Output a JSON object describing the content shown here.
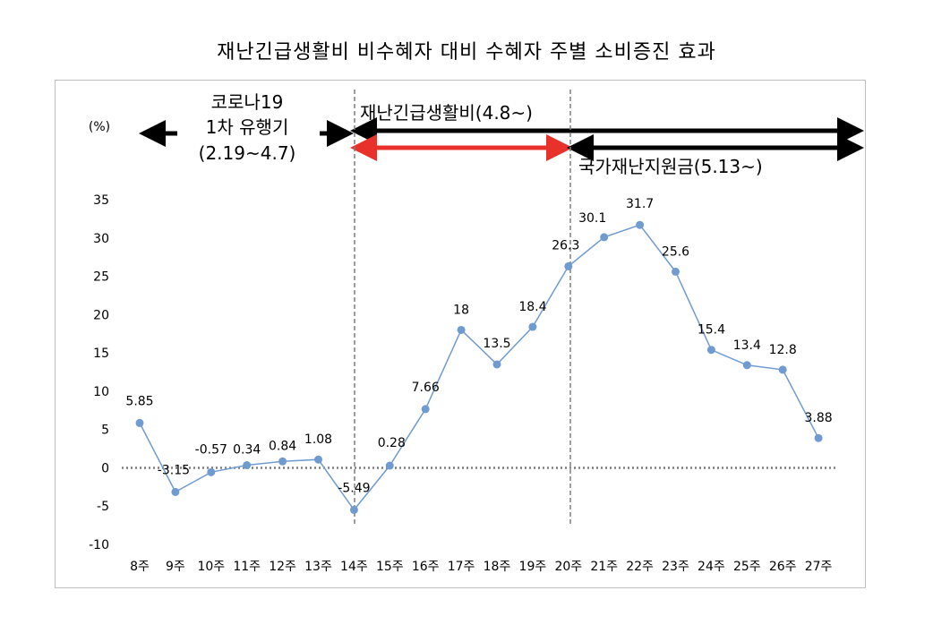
{
  "chart_data": {
    "type": "line",
    "title": "재난긴급생활비 비수혜자 대비 수혜자 주별 소비증진 효과",
    "ylabel": "(%)",
    "xlabel": "",
    "ylim": [
      -10,
      35
    ],
    "y_ticks": [
      35,
      30,
      25,
      20,
      15,
      10,
      5,
      0,
      -5,
      -10
    ],
    "categories": [
      "8주",
      "9주",
      "10주",
      "11주",
      "12주",
      "13주",
      "14주",
      "15주",
      "16주",
      "17주",
      "18주",
      "19주",
      "20주",
      "21주",
      "22주",
      "23주",
      "24주",
      "25주",
      "26주",
      "27주"
    ],
    "series": [
      {
        "name": "",
        "values": [
          5.85,
          -3.15,
          -0.57,
          0.34,
          0.84,
          1.08,
          -5.49,
          0.28,
          7.66,
          18,
          13.5,
          18.4,
          26.3,
          30.1,
          31.7,
          25.6,
          15.4,
          13.4,
          12.8,
          3.88
        ]
      }
    ],
    "data_labels": [
      "5.85",
      "-3.15",
      "-0.57",
      "0.34",
      "0.84",
      "1.08",
      "-5.49",
      "0.28",
      "7.66",
      "18",
      "13.5",
      "18.4",
      "26.3",
      "30.1",
      "31.7",
      "25.6",
      "15.4",
      "13.4",
      "12.8",
      "3.88"
    ],
    "colors": {
      "line": "#6f9bd1",
      "marker": "#6f9bd1",
      "red_arrow": "#e8312a",
      "black_arrow": "#000000",
      "guide": "#7f7f7f"
    },
    "grid": false,
    "legend": "none",
    "annotations": {
      "covid_label_1": "코로나19",
      "covid_label_2": "1차 유행기",
      "covid_label_3": "(2.19~4.7)",
      "relief_label": "재난긴급생활비(4.8~)",
      "national_label": "국가재난지원금(5.13~)"
    }
  }
}
